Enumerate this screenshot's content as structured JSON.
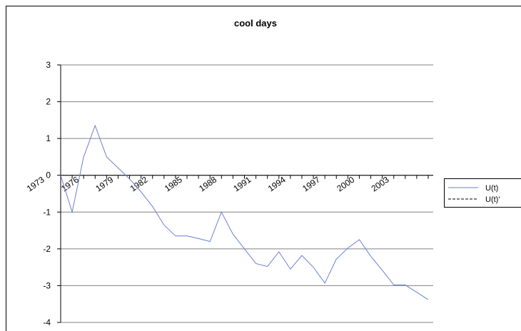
{
  "chart_data": {
    "type": "line",
    "title": "cool days",
    "categories": [
      "1973",
      null,
      null,
      "1976",
      null,
      null,
      "1979",
      null,
      null,
      "1982",
      null,
      null,
      "1985",
      null,
      null,
      "1988",
      null,
      null,
      "1991",
      null,
      null,
      "1994",
      null,
      null,
      "1997",
      null,
      null,
      "2000",
      null,
      null,
      "2003",
      null,
      null
    ],
    "series": [
      {
        "name": "U(t)",
        "color": "#6b7fd7",
        "values": [
          0,
          -1.0,
          0.5,
          1.35,
          0.5,
          0.2,
          -0.1,
          -0.45,
          -0.85,
          -1.35,
          -1.65,
          -1.65,
          -1.72,
          -1.8,
          -1.0,
          -1.6,
          -2.0,
          -2.4,
          -2.48,
          -2.08,
          -2.55,
          -2.18,
          -2.5,
          -2.93,
          -2.28,
          -1.98,
          -1.75,
          -2.2,
          -2.58,
          -2.98,
          -2.98,
          -3.18,
          -3.38
        ]
      },
      {
        "name": "U(t)'",
        "color": "#000000",
        "values": [
          null,
          null,
          null,
          null,
          null,
          null,
          null,
          null,
          null,
          null,
          null,
          null,
          null,
          null,
          null,
          null,
          null,
          null,
          null,
          null,
          null,
          null,
          null,
          null,
          null,
          null,
          null,
          null,
          null,
          null,
          null,
          null,
          null
        ]
      }
    ],
    "ylim": [
      -4,
      3
    ],
    "yticks": [
      -4,
      -3,
      -2,
      -1,
      0,
      1,
      2,
      3
    ],
    "grid": true
  }
}
